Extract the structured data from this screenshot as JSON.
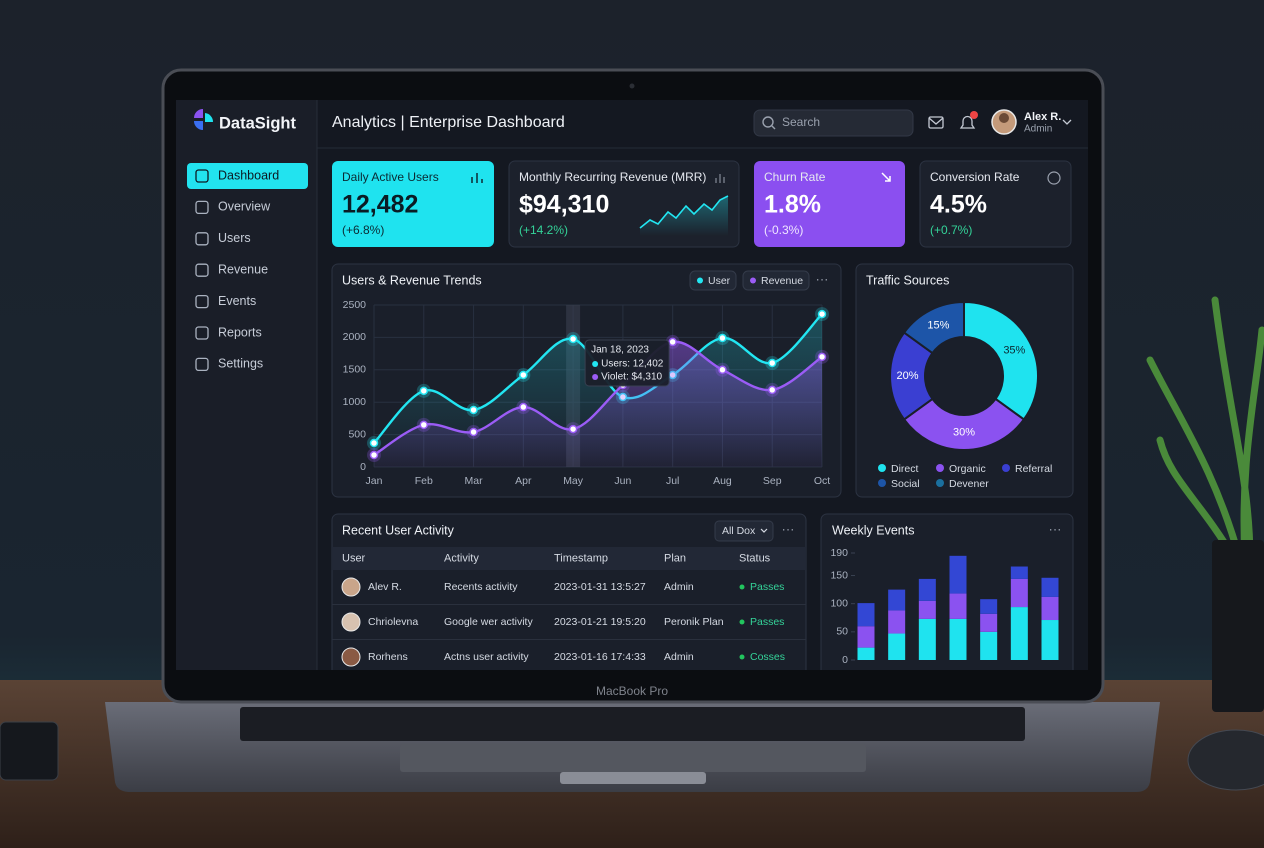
{
  "brand": "DataSight",
  "header": {
    "title": "Analytics | Enterprise Dashboard",
    "search": "Search",
    "user": "Alex R.",
    "role": "Admin"
  },
  "nav": {
    "items": [
      "Dashboard",
      "Overview",
      "Users",
      "Revenue",
      "Events",
      "Reports",
      "Settings"
    ],
    "active": 0
  },
  "kpis": [
    {
      "label": "Daily Active Users",
      "value": "12,482",
      "change": "(+6.8%)"
    },
    {
      "label": "Monthly Recurring Revenue (MRR)",
      "value": "$94,310",
      "change": "(+14.2%)"
    },
    {
      "label": "Churn Rate",
      "value": "1.8%",
      "change": "(-0.3%)"
    },
    {
      "label": "Conversion Rate",
      "value": "4.5%",
      "change": "(+0.7%)"
    }
  ],
  "trends": {
    "type": "line",
    "title": "Users & Revenue Trends",
    "categories": [
      "Jan",
      "Feb",
      "Mar",
      "Apr",
      "May",
      "Jun",
      "Jul",
      "Aug",
      "Sep",
      "Oct"
    ],
    "series": [
      {
        "name": "User",
        "color": "#22e6f2",
        "values": [
          370,
          1175,
          880,
          1420,
          1975,
          1080,
          1420,
          1990,
          1605,
          2360
        ]
      },
      {
        "name": "Revenue",
        "color": "#9b5cf6",
        "values": [
          185,
          650,
          540,
          925,
          585,
          1265,
          1930,
          1500,
          1190,
          1700
        ]
      }
    ],
    "ylim": [
      0,
      2500
    ],
    "yticks": [
      0,
      500,
      1000,
      1500,
      2000,
      2500
    ],
    "grid": true,
    "tooltip": {
      "date": "Jan 18, 2023",
      "lines": [
        "Users: 12,402",
        "Violet: $4,310"
      ]
    }
  },
  "traffic": {
    "type": "pie",
    "title": "Traffic Sources",
    "categories": [
      "Direct",
      "Organic",
      "Referral",
      "Social",
      "Devener"
    ],
    "values": [
      35,
      30,
      20,
      15,
      null
    ],
    "value_labels": [
      "35%",
      "30%",
      "20%",
      "15%",
      null
    ],
    "colors": [
      "#1fe3ef",
      "#8b52f0",
      "#3a3fd2",
      "#1d55a8",
      "#1a6f9e"
    ]
  },
  "activity": {
    "title": "Recent User Activity",
    "filter": "All Dox",
    "columns": [
      "User",
      "Activity",
      "Timestamp",
      "Plan",
      "Status"
    ],
    "rows": [
      [
        "Alev R.",
        "Recents activity",
        "2023-01-31 13:5:27",
        "Admin",
        "Passes"
      ],
      [
        "Chriolevna",
        "Google wer activity",
        "2023-01-21 19:5:20",
        "Peronik Plan",
        "Passes"
      ],
      [
        "Rorhens",
        "Actns user activity",
        "2023-01-16 17:4:33",
        "Admin",
        "Cosses"
      ]
    ]
  },
  "weekly": {
    "type": "bar",
    "stacked": true,
    "title": "Weekly Events",
    "categories": [
      null,
      null,
      null,
      null,
      null,
      null,
      null
    ],
    "series": [
      {
        "color": "#1fe3ef",
        "values": [
          22,
          47,
          73,
          73,
          50,
          94,
          71
        ]
      },
      {
        "color": "#8b52f0",
        "values": [
          38,
          41,
          32,
          45,
          32,
          50,
          41
        ]
      },
      {
        "color": "#3347d4",
        "values": [
          41,
          37,
          39,
          67,
          26,
          22,
          34
        ]
      }
    ],
    "ylim": [
      0,
      190
    ],
    "yticks": [
      0,
      50,
      100,
      150,
      190
    ]
  },
  "device": "MacBook Pro"
}
